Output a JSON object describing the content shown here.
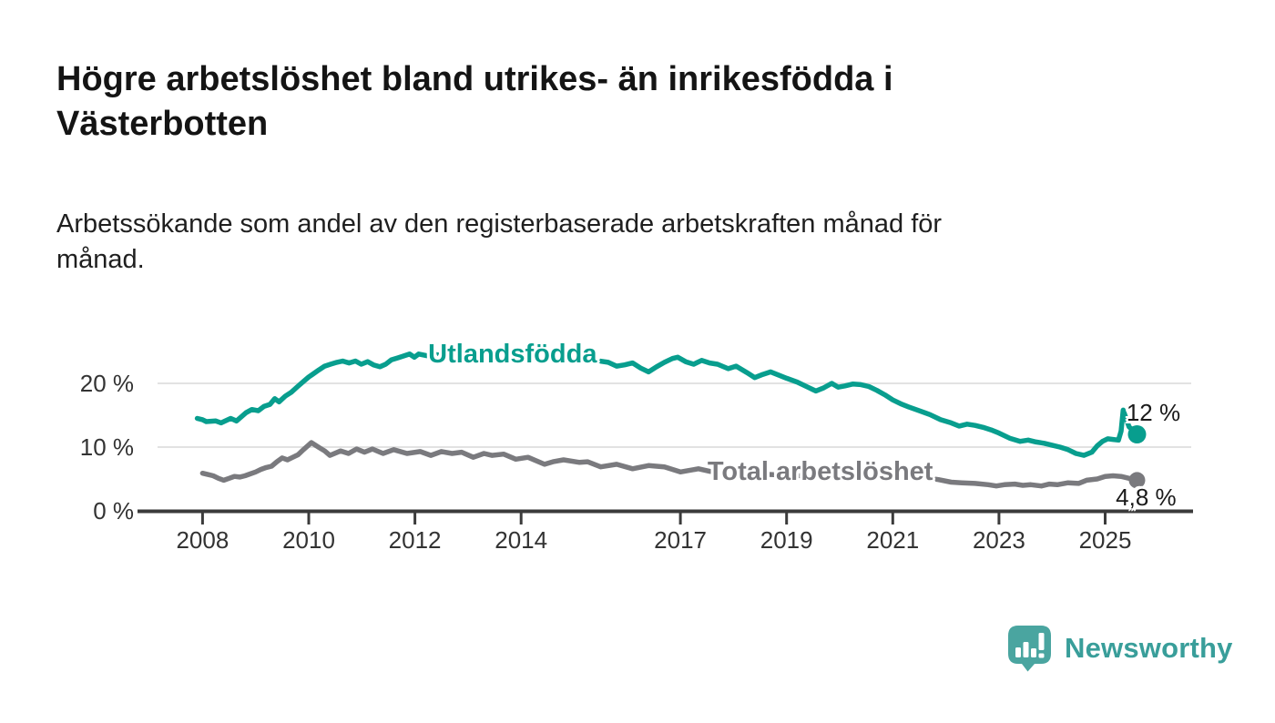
{
  "header": {
    "title": "Högre arbetslöshet bland utrikes- än inrikesfödda i Västerbotten",
    "title_lines": [
      "Högre arbetslöshet bland utrikes- än inrikesfödda i",
      "Västerbotten"
    ],
    "subtitle": "Arbetssökande som andel av den registerbaserade arbetskraften månad för månad.",
    "subtitle_lines": [
      "Arbetssökande som andel av den registerbaserade arbetskraften månad för",
      "månad."
    ]
  },
  "branding": {
    "logo_text": "Newsworthy",
    "logo_mark_color": "#4aa5a0",
    "wordmark_color": "#399e9a"
  },
  "chart_data": {
    "type": "line",
    "title": "Högre arbetslöshet bland utrikes- än inrikesfödda i Västerbotten",
    "subtitle": "Arbetssökande som andel av den registerbaserade arbetskraften månad för månad.",
    "xlabel": "",
    "ylabel": "",
    "x_axis": {
      "range": [
        2007.1,
        2026.3
      ],
      "ticks": [
        {
          "value": 2008,
          "label": "2008"
        },
        {
          "value": 2010,
          "label": "2010"
        },
        {
          "value": 2012,
          "label": "2012"
        },
        {
          "value": 2014,
          "label": "2014"
        },
        {
          "value": 2017,
          "label": "2017"
        },
        {
          "value": 2019,
          "label": "2019"
        },
        {
          "value": 2021,
          "label": "2021"
        },
        {
          "value": 2023,
          "label": "2023"
        },
        {
          "value": 2025,
          "label": "2025"
        }
      ]
    },
    "y_axis": {
      "range": [
        0,
        25.7
      ],
      "unit": "%",
      "grid": true,
      "ticks": [
        {
          "value": 0,
          "label": "0 %"
        },
        {
          "value": 10,
          "label": "10 %"
        },
        {
          "value": 20,
          "label": "20 %"
        }
      ]
    },
    "style": {
      "grid_color": "#e2e2e2",
      "axis_color": "#3b3b3b",
      "tick_label_color": "#333333",
      "background": "#ffffff"
    },
    "series": [
      {
        "name": "Utlandsfödda",
        "color": "#089e8e",
        "inline_label": {
          "text": "Utlandsfödda",
          "year": 2012.25,
          "value": 24.6
        },
        "end_label": {
          "text": "12 %",
          "year": 2025.4,
          "value": 15.4
        },
        "end_dot": {
          "year": 2025.6,
          "value": 12.0
        },
        "points": [
          [
            2007.9,
            14.5
          ],
          [
            2008.0,
            14.3
          ],
          [
            2008.07,
            14.0
          ],
          [
            2008.25,
            14.1
          ],
          [
            2008.35,
            13.8
          ],
          [
            2008.53,
            14.5
          ],
          [
            2008.64,
            14.1
          ],
          [
            2008.82,
            15.4
          ],
          [
            2008.93,
            15.9
          ],
          [
            2009.05,
            15.7
          ],
          [
            2009.16,
            16.4
          ],
          [
            2009.27,
            16.7
          ],
          [
            2009.36,
            17.6
          ],
          [
            2009.44,
            17.1
          ],
          [
            2009.56,
            18.0
          ],
          [
            2009.67,
            18.6
          ],
          [
            2009.79,
            19.5
          ],
          [
            2009.9,
            20.3
          ],
          [
            2010.0,
            21.0
          ],
          [
            2010.07,
            21.4
          ],
          [
            2010.19,
            22.1
          ],
          [
            2010.3,
            22.7
          ],
          [
            2010.41,
            23.0
          ],
          [
            2010.53,
            23.3
          ],
          [
            2010.64,
            23.5
          ],
          [
            2010.76,
            23.2
          ],
          [
            2010.88,
            23.5
          ],
          [
            2010.99,
            23.0
          ],
          [
            2011.11,
            23.4
          ],
          [
            2011.22,
            22.9
          ],
          [
            2011.34,
            22.6
          ],
          [
            2011.45,
            23.0
          ],
          [
            2011.56,
            23.7
          ],
          [
            2011.68,
            24.0
          ],
          [
            2011.79,
            24.3
          ],
          [
            2011.9,
            24.6
          ],
          [
            2011.99,
            24.1
          ],
          [
            2012.07,
            24.6
          ],
          [
            2012.25,
            24.3
          ],
          [
            2012.4,
            24.5
          ],
          [
            2012.6,
            24.2
          ],
          [
            2012.8,
            24.4
          ],
          [
            2013.0,
            24.6
          ],
          [
            2013.2,
            24.3
          ],
          [
            2013.4,
            24.5
          ],
          [
            2013.6,
            24.2
          ],
          [
            2013.8,
            24.4
          ],
          [
            2014.0,
            24.1
          ],
          [
            2014.2,
            24.3
          ],
          [
            2014.4,
            24.0
          ],
          [
            2014.6,
            24.2
          ],
          [
            2014.8,
            23.9
          ],
          [
            2015.0,
            24.1
          ],
          [
            2015.2,
            23.8
          ],
          [
            2015.4,
            23.6
          ],
          [
            2015.64,
            23.3
          ],
          [
            2015.8,
            22.7
          ],
          [
            2015.95,
            22.9
          ],
          [
            2016.1,
            23.2
          ],
          [
            2016.25,
            22.4
          ],
          [
            2016.4,
            21.8
          ],
          [
            2016.55,
            22.6
          ],
          [
            2016.7,
            23.3
          ],
          [
            2016.85,
            23.9
          ],
          [
            2016.95,
            24.1
          ],
          [
            2017.1,
            23.4
          ],
          [
            2017.25,
            23.0
          ],
          [
            2017.4,
            23.6
          ],
          [
            2017.55,
            23.2
          ],
          [
            2017.7,
            23.0
          ],
          [
            2017.9,
            22.3
          ],
          [
            2018.05,
            22.7
          ],
          [
            2018.25,
            21.7
          ],
          [
            2018.4,
            20.9
          ],
          [
            2018.55,
            21.4
          ],
          [
            2018.7,
            21.8
          ],
          [
            2018.85,
            21.3
          ],
          [
            2019.0,
            20.8
          ],
          [
            2019.2,
            20.2
          ],
          [
            2019.4,
            19.4
          ],
          [
            2019.55,
            18.8
          ],
          [
            2019.7,
            19.3
          ],
          [
            2019.85,
            20.0
          ],
          [
            2019.97,
            19.4
          ],
          [
            2020.1,
            19.6
          ],
          [
            2020.25,
            19.9
          ],
          [
            2020.4,
            19.8
          ],
          [
            2020.55,
            19.5
          ],
          [
            2020.7,
            18.9
          ],
          [
            2020.85,
            18.2
          ],
          [
            2021.0,
            17.4
          ],
          [
            2021.15,
            16.8
          ],
          [
            2021.3,
            16.3
          ],
          [
            2021.5,
            15.7
          ],
          [
            2021.7,
            15.1
          ],
          [
            2021.9,
            14.3
          ],
          [
            2022.1,
            13.8
          ],
          [
            2022.25,
            13.3
          ],
          [
            2022.4,
            13.6
          ],
          [
            2022.55,
            13.4
          ],
          [
            2022.7,
            13.1
          ],
          [
            2022.85,
            12.7
          ],
          [
            2023.0,
            12.2
          ],
          [
            2023.2,
            11.4
          ],
          [
            2023.4,
            10.9
          ],
          [
            2023.55,
            11.1
          ],
          [
            2023.7,
            10.8
          ],
          [
            2023.85,
            10.6
          ],
          [
            2024.0,
            10.3
          ],
          [
            2024.15,
            10.0
          ],
          [
            2024.3,
            9.6
          ],
          [
            2024.45,
            9.0
          ],
          [
            2024.6,
            8.7
          ],
          [
            2024.75,
            9.2
          ],
          [
            2024.85,
            10.2
          ],
          [
            2024.95,
            10.9
          ],
          [
            2025.05,
            11.3
          ],
          [
            2025.15,
            11.2
          ],
          [
            2025.25,
            11.1
          ],
          [
            2025.3,
            12.5
          ],
          [
            2025.34,
            15.8
          ],
          [
            2025.45,
            13.2
          ],
          [
            2025.6,
            12.0
          ]
        ]
      },
      {
        "name": "Total arbetslöshet",
        "color": "#7a7a7e",
        "inline_label": {
          "text": "Total arbetslöshet",
          "year": 2017.51,
          "value": 6.1
        },
        "end_label": {
          "text": "4,8 %",
          "year": 2025.2,
          "value": 2.1
        },
        "end_dot": {
          "year": 2025.6,
          "value": 4.8
        },
        "points": [
          [
            2008.0,
            5.9
          ],
          [
            2008.1,
            5.7
          ],
          [
            2008.2,
            5.5
          ],
          [
            2008.3,
            5.1
          ],
          [
            2008.4,
            4.8
          ],
          [
            2008.5,
            5.1
          ],
          [
            2008.6,
            5.4
          ],
          [
            2008.7,
            5.3
          ],
          [
            2008.8,
            5.5
          ],
          [
            2008.9,
            5.8
          ],
          [
            2009.0,
            6.1
          ],
          [
            2009.1,
            6.5
          ],
          [
            2009.2,
            6.8
          ],
          [
            2009.3,
            7.0
          ],
          [
            2009.4,
            7.7
          ],
          [
            2009.5,
            8.3
          ],
          [
            2009.6,
            8.0
          ],
          [
            2009.7,
            8.4
          ],
          [
            2009.8,
            8.8
          ],
          [
            2009.9,
            9.6
          ],
          [
            2010.05,
            10.7
          ],
          [
            2010.2,
            9.9
          ],
          [
            2010.3,
            9.4
          ],
          [
            2010.4,
            8.7
          ],
          [
            2010.6,
            9.4
          ],
          [
            2010.75,
            9.0
          ],
          [
            2010.9,
            9.7
          ],
          [
            2011.05,
            9.2
          ],
          [
            2011.2,
            9.7
          ],
          [
            2011.4,
            9.0
          ],
          [
            2011.6,
            9.6
          ],
          [
            2011.85,
            9.0
          ],
          [
            2012.1,
            9.3
          ],
          [
            2012.3,
            8.7
          ],
          [
            2012.5,
            9.3
          ],
          [
            2012.7,
            9.0
          ],
          [
            2012.88,
            9.2
          ],
          [
            2013.1,
            8.4
          ],
          [
            2013.3,
            9.0
          ],
          [
            2013.45,
            8.7
          ],
          [
            2013.67,
            8.9
          ],
          [
            2013.9,
            8.1
          ],
          [
            2014.13,
            8.4
          ],
          [
            2014.44,
            7.3
          ],
          [
            2014.6,
            7.7
          ],
          [
            2014.8,
            8.0
          ],
          [
            2015.1,
            7.6
          ],
          [
            2015.25,
            7.7
          ],
          [
            2015.5,
            6.9
          ],
          [
            2015.8,
            7.3
          ],
          [
            2016.1,
            6.6
          ],
          [
            2016.4,
            7.1
          ],
          [
            2016.7,
            6.9
          ],
          [
            2017.0,
            6.1
          ],
          [
            2017.34,
            6.6
          ],
          [
            2017.55,
            6.2
          ],
          [
            2017.8,
            6.1
          ],
          [
            2018.1,
            5.9
          ],
          [
            2018.4,
            5.8
          ],
          [
            2018.7,
            5.7
          ],
          [
            2019.0,
            5.6
          ],
          [
            2019.3,
            5.5
          ],
          [
            2019.6,
            5.5
          ],
          [
            2019.9,
            5.6
          ],
          [
            2020.2,
            6.1
          ],
          [
            2020.5,
            6.2
          ],
          [
            2020.8,
            6.0
          ],
          [
            2021.1,
            5.7
          ],
          [
            2021.4,
            5.4
          ],
          [
            2021.6,
            5.2
          ],
          [
            2021.86,
            4.9
          ],
          [
            2022.1,
            4.5
          ],
          [
            2022.3,
            4.4
          ],
          [
            2022.55,
            4.3
          ],
          [
            2022.8,
            4.1
          ],
          [
            2022.95,
            3.9
          ],
          [
            2023.1,
            4.1
          ],
          [
            2023.3,
            4.2
          ],
          [
            2023.45,
            4.0
          ],
          [
            2023.6,
            4.1
          ],
          [
            2023.8,
            3.9
          ],
          [
            2023.95,
            4.2
          ],
          [
            2024.1,
            4.1
          ],
          [
            2024.3,
            4.4
          ],
          [
            2024.5,
            4.3
          ],
          [
            2024.65,
            4.8
          ],
          [
            2024.85,
            5.0
          ],
          [
            2025.0,
            5.4
          ],
          [
            2025.15,
            5.5
          ],
          [
            2025.3,
            5.4
          ],
          [
            2025.6,
            4.8
          ]
        ]
      }
    ]
  }
}
